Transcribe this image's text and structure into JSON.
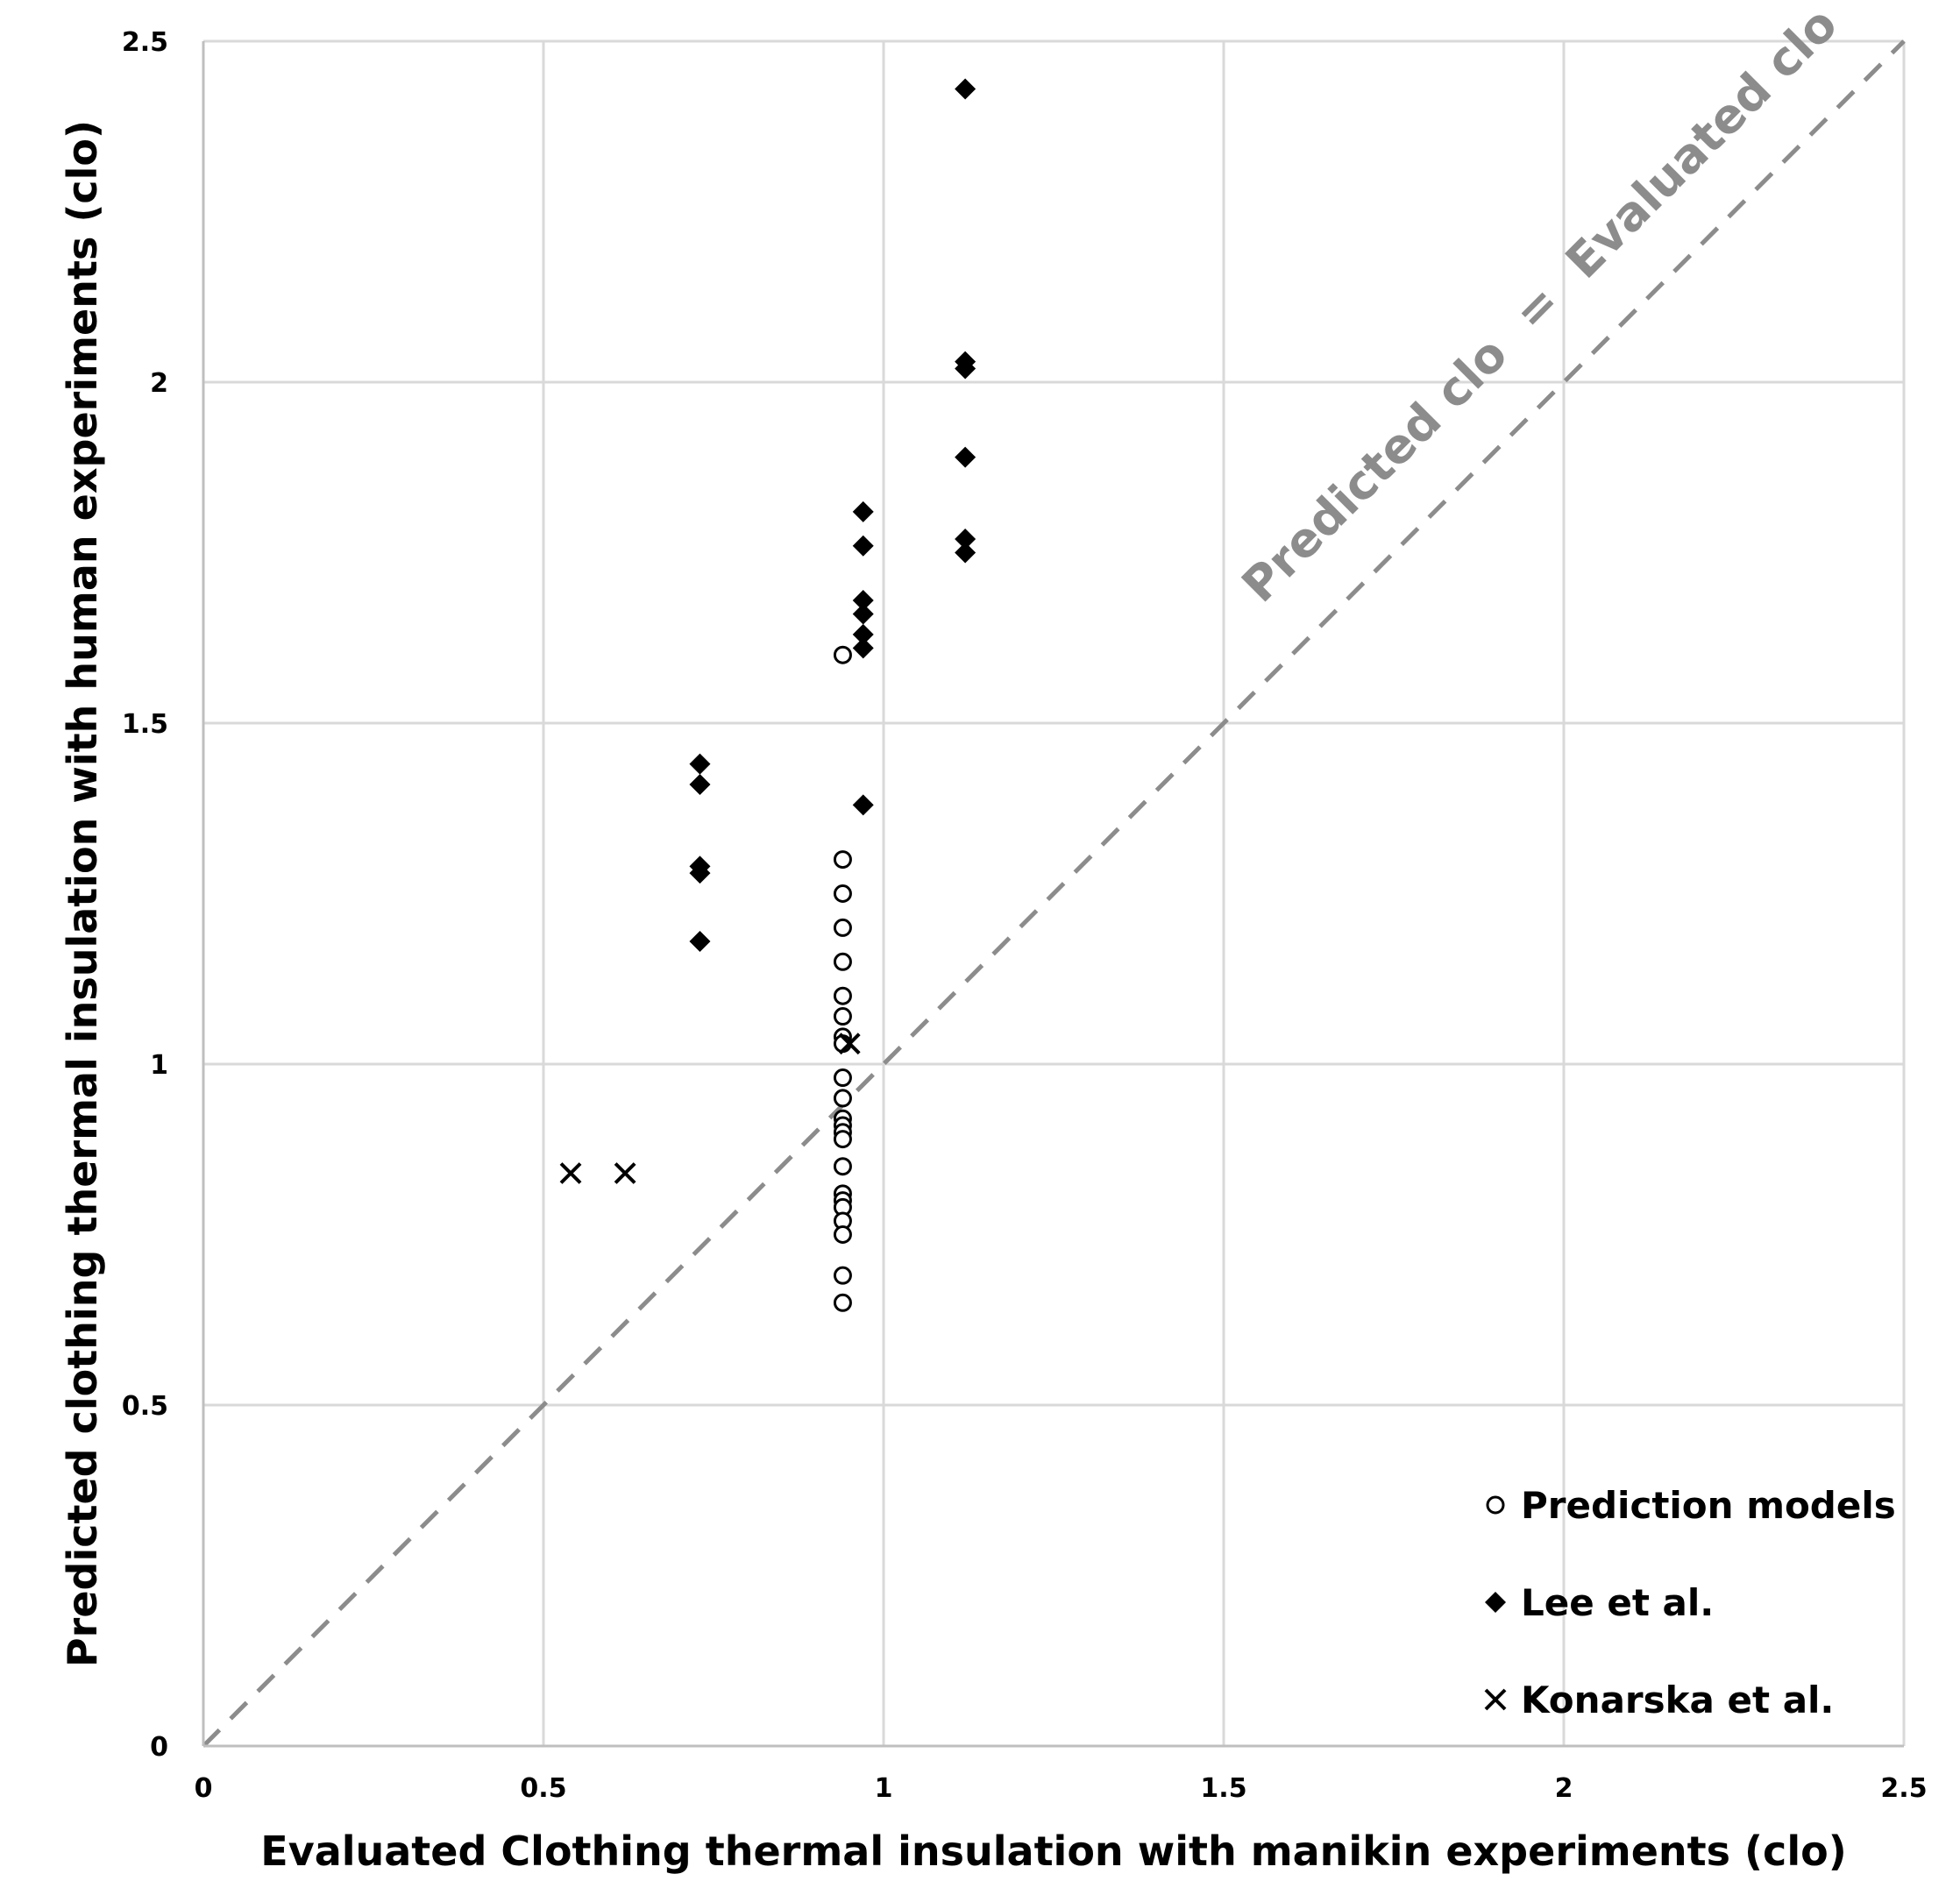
{
  "chart_data": {
    "type": "scatter",
    "title": "",
    "xlabel": "Evaluated Clothing thermal insulation with manikin experiments (clo)",
    "ylabel": "Predicted clothing thermal insulation with human experiments (clo)",
    "xlim": [
      0,
      2.5
    ],
    "ylim": [
      0,
      2.5
    ],
    "xticks": [
      "0",
      "0.5",
      "1",
      "1.5",
      "2",
      "2.5"
    ],
    "yticks": [
      "0",
      "0.5",
      "1",
      "1.5",
      "2",
      "2.5"
    ],
    "xtick_values": [
      0,
      0.5,
      1,
      1.5,
      2,
      2.5
    ],
    "ytick_values": [
      0,
      0.5,
      1,
      1.5,
      2,
      2.5
    ],
    "grid": true,
    "legend_position": "bottom-right",
    "reference_line": {
      "label_left": "Predicted clo",
      "label_mid": "=",
      "label_right": "Evaluated clo",
      "from": [
        0,
        0
      ],
      "to": [
        2.5,
        2.5
      ],
      "color": "#8c8c8c",
      "style": "dashed"
    },
    "series": [
      {
        "name": "Prediction models",
        "marker": "circle-open",
        "color": "#000000",
        "x": [
          0.94,
          0.94,
          0.94,
          0.94,
          0.94,
          0.94,
          0.94,
          0.94,
          0.94,
          0.94,
          0.94,
          0.94,
          0.94,
          0.94,
          0.94,
          0.94,
          0.94,
          0.94,
          0.94,
          0.94,
          0.94,
          0.94,
          0.94
        ],
        "y": [
          1.6,
          1.3,
          1.25,
          1.2,
          1.15,
          1.1,
          1.07,
          1.04,
          0.98,
          0.95,
          0.92,
          0.91,
          0.9,
          0.89,
          0.85,
          0.81,
          0.8,
          0.79,
          0.77,
          0.75,
          0.69,
          0.65,
          1.03
        ]
      },
      {
        "name": "Lee et al.",
        "marker": "diamond-filled",
        "color": "#000000",
        "x": [
          1.12,
          1.12,
          1.12,
          1.12,
          1.12,
          1.12,
          0.97,
          0.97,
          0.97,
          0.97,
          0.97,
          0.97,
          0.97,
          0.73,
          0.73,
          0.73,
          0.73,
          0.73
        ],
        "y": [
          2.43,
          2.03,
          2.02,
          1.89,
          1.77,
          1.75,
          1.81,
          1.76,
          1.68,
          1.66,
          1.63,
          1.61,
          1.38,
          1.44,
          1.41,
          1.29,
          1.28,
          1.18
        ]
      },
      {
        "name": "Konarska et al.",
        "marker": "x",
        "color": "#000000",
        "x": [
          0.54,
          0.62,
          0.95
        ],
        "y": [
          0.84,
          0.84,
          1.03
        ]
      }
    ]
  }
}
